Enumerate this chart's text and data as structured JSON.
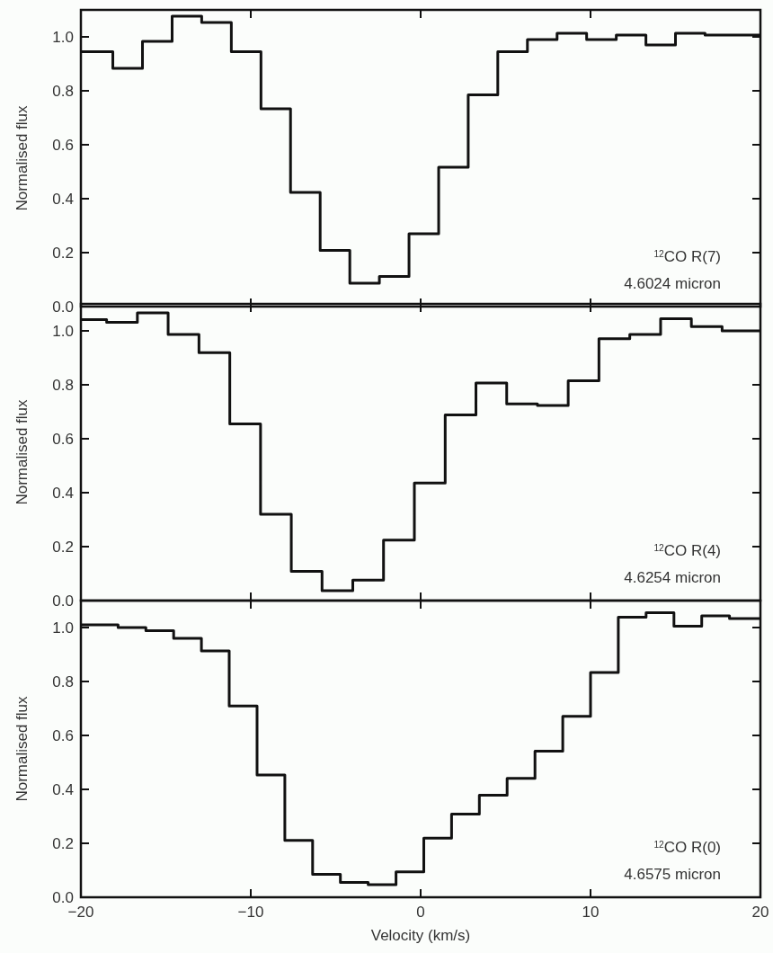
{
  "chart_data": [
    {
      "type": "step",
      "ylabel": "Normalised flux",
      "xlim": [
        -20,
        20
      ],
      "xticks": [
        -20,
        -10,
        0,
        10,
        20
      ],
      "ylim": [
        0,
        1.1
      ],
      "yticks": [
        {
          "value": 0,
          "label": "0.0"
        },
        {
          "value": 0.2,
          "label": "0.2"
        },
        {
          "value": 0.4,
          "label": "0.4"
        },
        {
          "value": 0.6,
          "label": "0.6"
        },
        {
          "value": 0.8,
          "label": "0.8"
        },
        {
          "value": 1,
          "label": "1.0"
        }
      ],
      "tick_labels": "y",
      "grid": false,
      "annotations": [
        "$^{12}$CO R(7)",
        "4.6024 micron"
      ],
      "series": [
        {
          "color": "#111111",
          "x": [
            -20,
            -18.99,
            -17.25,
            -15.5,
            -13.76,
            -12.02,
            -10.27,
            -8.53,
            -6.79,
            -5.04,
            -3.3,
            -1.56,
            0.19,
            1.93,
            3.67,
            5.41,
            7.16,
            8.9,
            10.64,
            12.39,
            14.13,
            15.87,
            17.61,
            20
          ],
          "values": [
            0.945,
            0.945,
            0.883,
            0.983,
            1.077,
            1.053,
            0.945,
            0.733,
            0.423,
            0.208,
            0.087,
            0.112,
            0.27,
            0.517,
            0.785,
            0.945,
            0.99,
            1.013,
            0.99,
            1.007,
            0.97,
            1.013,
            1.007,
            1.007
          ]
        }
      ]
    },
    {
      "type": "step",
      "ylabel": "Normalised flux",
      "xlim": [
        -20,
        20
      ],
      "xticks": [
        -20,
        -10,
        0,
        10,
        20
      ],
      "ylim": [
        0,
        1.1
      ],
      "yticks": [
        {
          "value": 0,
          "label": "0.0"
        },
        {
          "value": 0.2,
          "label": "0.2"
        },
        {
          "value": 0.4,
          "label": "0.4"
        },
        {
          "value": 0.6,
          "label": "0.6"
        },
        {
          "value": 0.8,
          "label": "0.8"
        },
        {
          "value": 1,
          "label": "1.0"
        }
      ],
      "tick_labels": "y",
      "grid": false,
      "annotations": [
        "$^{12}$CO R(4)",
        "4.6254 micron"
      ],
      "series": [
        {
          "color": "#111111",
          "x": [
            -20,
            -19.39,
            -17.58,
            -15.77,
            -13.96,
            -12.14,
            -10.33,
            -8.52,
            -6.71,
            -4.9,
            -3.09,
            -1.28,
            0.54,
            2.35,
            4.16,
            5.97,
            7.78,
            9.59,
            11.4,
            13.22,
            15.03,
            16.84,
            18.65,
            20
          ],
          "values": [
            1.042,
            1.042,
            1.032,
            1.067,
            0.987,
            0.919,
            0.655,
            0.32,
            0.108,
            0.037,
            0.076,
            0.224,
            0.436,
            0.688,
            0.807,
            0.729,
            0.723,
            0.815,
            0.971,
            0.987,
            1.045,
            1.016,
            1.0,
            1.0
          ]
        }
      ]
    },
    {
      "type": "step",
      "xlabel": "Velocity (km/s)",
      "ylabel": "Normalised flux",
      "xlim": [
        -20,
        20
      ],
      "xticks": [
        {
          "value": -20,
          "label": "−20"
        },
        {
          "value": -10,
          "label": "−10"
        },
        0,
        10,
        20
      ],
      "ylim": [
        0,
        1.1
      ],
      "yticks": [
        {
          "value": 0,
          "label": "0.0"
        },
        {
          "value": 0.2,
          "label": "0.2"
        },
        {
          "value": 0.4,
          "label": "0.4"
        },
        {
          "value": 0.6,
          "label": "0.6"
        },
        {
          "value": 0.8,
          "label": "0.8"
        },
        {
          "value": 1,
          "label": "1.0"
        }
      ],
      "grid": false,
      "annotations": [
        "$^{12}$CO R(0)",
        "4.6575 micron"
      ],
      "series": [
        {
          "color": "#111111",
          "x": [
            -20,
            -18.63,
            -16.99,
            -15.36,
            -13.72,
            -12.09,
            -10.45,
            -8.81,
            -7.18,
            -5.54,
            -3.91,
            -2.27,
            -0.63,
            1.0,
            2.64,
            4.27,
            5.91,
            7.55,
            9.18,
            10.82,
            12.45,
            14.09,
            15.73,
            17.36,
            19.0,
            20
          ],
          "values": [
            1.01,
            1.01,
            1.0,
            0.988,
            0.96,
            0.913,
            0.709,
            0.453,
            0.211,
            0.085,
            0.055,
            0.047,
            0.094,
            0.219,
            0.308,
            0.378,
            0.441,
            0.542,
            0.671,
            0.833,
            1.038,
            1.055,
            1.005,
            1.043,
            1.033,
            1.033
          ]
        }
      ]
    }
  ]
}
